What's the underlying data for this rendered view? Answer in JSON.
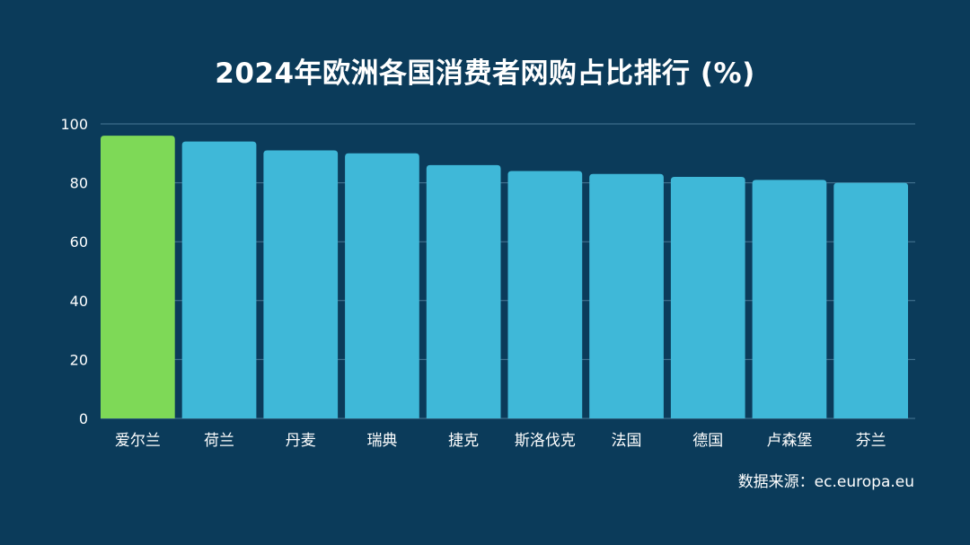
{
  "chart_data": {
    "type": "bar",
    "title": "2024年欧洲各国消费者网购占比排行 (%)",
    "xlabel": "",
    "ylabel": "",
    "categories": [
      "爱尔兰",
      "荷兰",
      "丹麦",
      "瑞典",
      "捷克",
      "斯洛伐克",
      "法国",
      "德国",
      "卢森堡",
      "芬兰"
    ],
    "values": [
      96,
      94,
      91,
      90,
      86,
      84,
      83,
      82,
      81,
      80
    ],
    "ylim": [
      0,
      100
    ],
    "yticks": [
      0,
      20,
      40,
      60,
      80,
      100
    ],
    "grid": true,
    "highlight_index": 0
  },
  "source": "数据来源：ec.europa.eu",
  "colors": {
    "background": "#0b3b5a",
    "bar": "#3fb8d8",
    "highlight": "#7ed957",
    "grid": "#4a7a96",
    "text": "#ffffff"
  }
}
